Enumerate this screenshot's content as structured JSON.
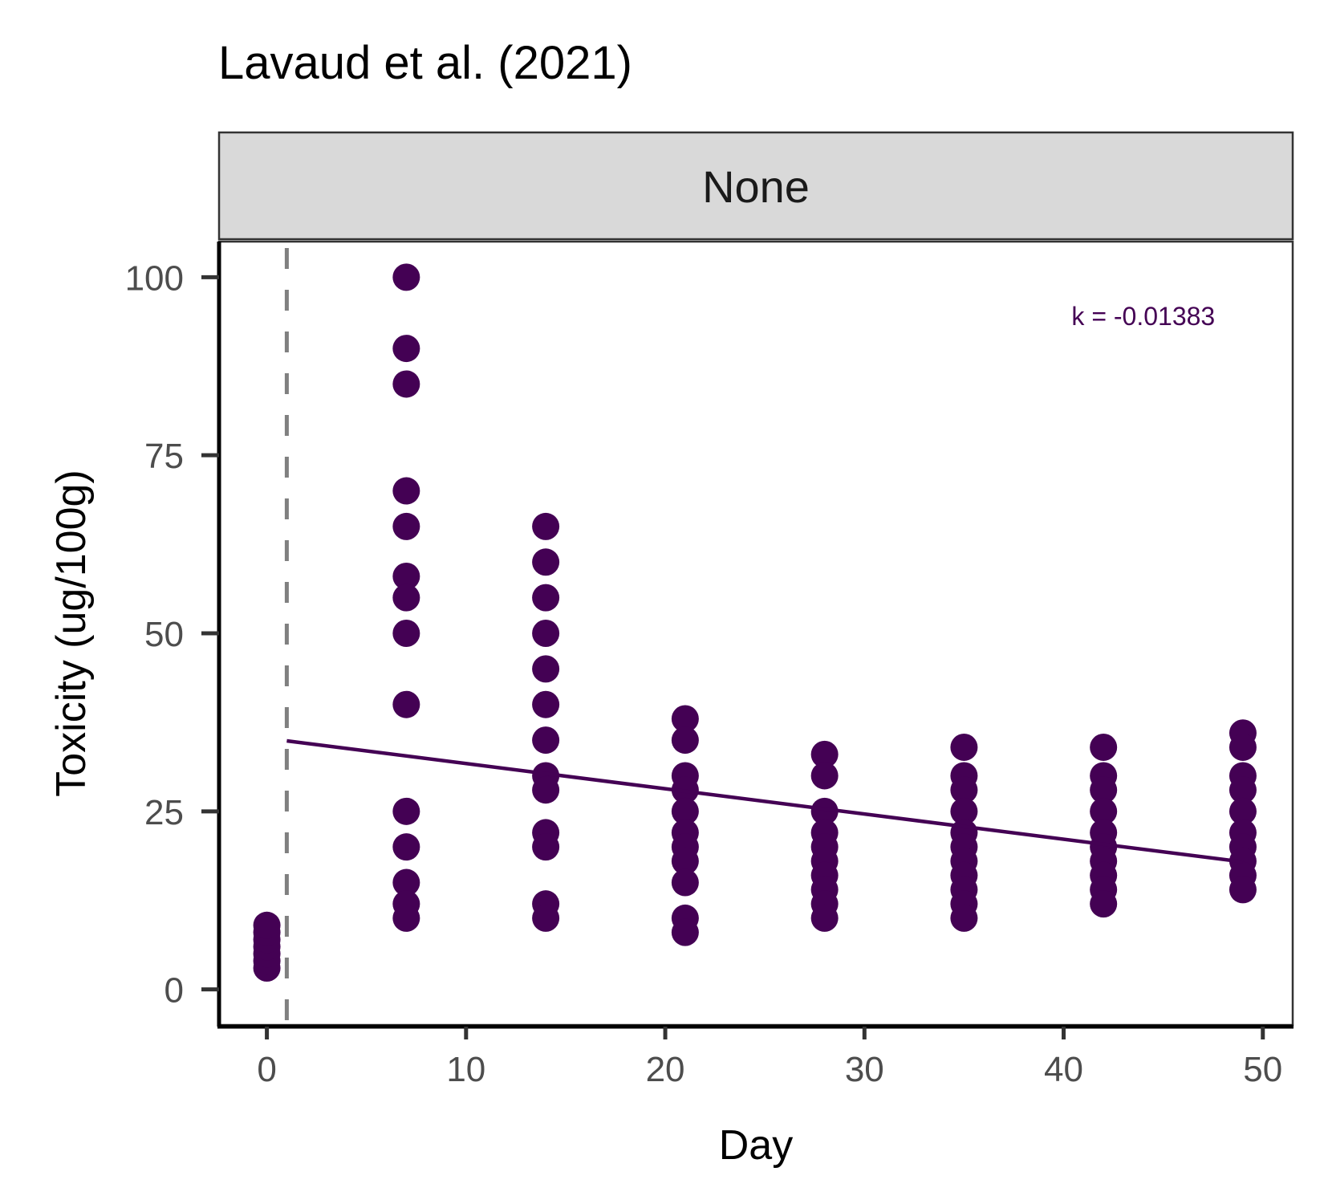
{
  "chart_data": {
    "type": "scatter",
    "title": "Lavaud et al. (2021)",
    "facet": "None",
    "xlabel": "Day",
    "ylabel": "Toxicity (ug/100g)",
    "xlim": [
      -2.4,
      51.5
    ],
    "ylim": [
      -5,
      105
    ],
    "xticks": [
      0,
      10,
      20,
      30,
      40,
      50
    ],
    "yticks": [
      0,
      25,
      50,
      75,
      100
    ],
    "grid": false,
    "colors": {
      "points": "#440154",
      "fit": "#440154",
      "vline": "#808080"
    },
    "annotation": {
      "text": "k = -0.01383",
      "x": 44,
      "y": 94.5
    },
    "vline_x": 1,
    "fit_line": {
      "x": [
        1,
        49
      ],
      "y": [
        34.9,
        17.9
      ]
    },
    "points": [
      {
        "x": 0,
        "y": [
          3,
          4,
          5,
          6,
          7,
          8,
          9
        ]
      },
      {
        "x": 7,
        "y": [
          100,
          90,
          85,
          70,
          65,
          58,
          55,
          50,
          40,
          25,
          20,
          15,
          12,
          10
        ]
      },
      {
        "x": 14,
        "y": [
          65,
          60,
          55,
          50,
          45,
          40,
          35,
          30,
          28,
          22,
          20,
          12,
          10
        ]
      },
      {
        "x": 21,
        "y": [
          38,
          35,
          30,
          28,
          25,
          22,
          20,
          18,
          15,
          10,
          8
        ]
      },
      {
        "x": 28,
        "y": [
          33,
          30,
          25,
          22,
          20,
          18,
          16,
          14,
          12,
          10
        ]
      },
      {
        "x": 35,
        "y": [
          34,
          30,
          28,
          25,
          22,
          20,
          18,
          16,
          14,
          12,
          10
        ]
      },
      {
        "x": 42,
        "y": [
          34,
          30,
          28,
          25,
          22,
          20,
          18,
          16,
          14,
          12
        ]
      },
      {
        "x": 49,
        "y": [
          36,
          34,
          30,
          28,
          25,
          22,
          20,
          18,
          16,
          14
        ]
      }
    ]
  }
}
